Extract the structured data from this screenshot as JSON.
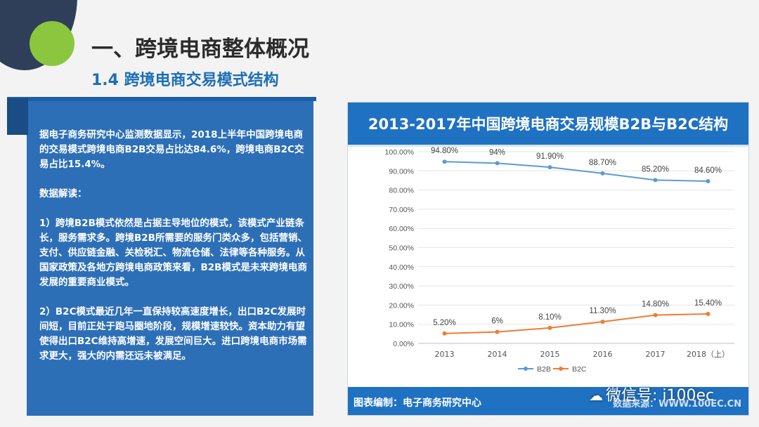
{
  "header": {
    "title": "一、跨境电商整体概况",
    "subtitle": "1.4 跨境电商交易模式结构"
  },
  "textbox": {
    "para1": "据电子商务研究中心监测数据显示，2018上半年中国跨境电商的交易模式跨境电商B2B交易占比达84.6%，跨境电商B2C交易占比15.4%。",
    "para2": "数据解读：",
    "para3": "1）跨境B2B模式依然是占据主导地位的模式，该模式产业链条长，服务需求多。跨境B2B所需要的服务门类众多，包括营销、支付、供应链金融、关检税汇、物流仓储、法律等各种服务。从国家政策及各地方跨境电商政策来看，B2B模式是未来跨境电商发展的重要商业模式。",
    "para4": "2）B2C模式最近几年一直保持较高速度增长，出口B2C发展时间短，目前正处于跑马圈地阶段，规模增速较快。资本助力有望使得出口B2C维持高增速，发展空间巨大。进口跨境电商市场需求更大，强大的内需还远未被满足。"
  },
  "chart_card": {
    "footer_credit": "图表编制：电子商务研究中心",
    "footer_site": "数据来源：WWW.100EC.CN"
  },
  "watermark": {
    "icon": "wechat-icon",
    "text": "微信号: i100ec"
  },
  "chart_data": {
    "type": "line",
    "title": "2013-2017年中国跨境电商交易规模B2B与B2C结构",
    "categories": [
      "2013",
      "2014",
      "2015",
      "2016",
      "2017",
      "2018（上）"
    ],
    "ylim": [
      0,
      100
    ],
    "yticks": [
      "0.00%",
      "10.00%",
      "20.00%",
      "30.00%",
      "40.00%",
      "50.00%",
      "60.00%",
      "70.00%",
      "80.00%",
      "90.00%",
      "100.00%"
    ],
    "grid": true,
    "legend_position": "bottom",
    "series": [
      {
        "name": "B2B",
        "color": "#5b9bd5",
        "values": [
          94.8,
          94,
          91.9,
          88.7,
          85.2,
          84.6
        ],
        "labels": [
          "94.80%",
          "94%",
          "91.90%",
          "88.70%",
          "85.20%",
          "84.60%"
        ]
      },
      {
        "name": "B2C",
        "color": "#ed7d31",
        "values": [
          5.2,
          6,
          8.1,
          11.3,
          14.8,
          15.4
        ],
        "labels": [
          "5.20%",
          "6%",
          "8.10%",
          "11.30%",
          "14.80%",
          "15.40%"
        ]
      }
    ]
  }
}
